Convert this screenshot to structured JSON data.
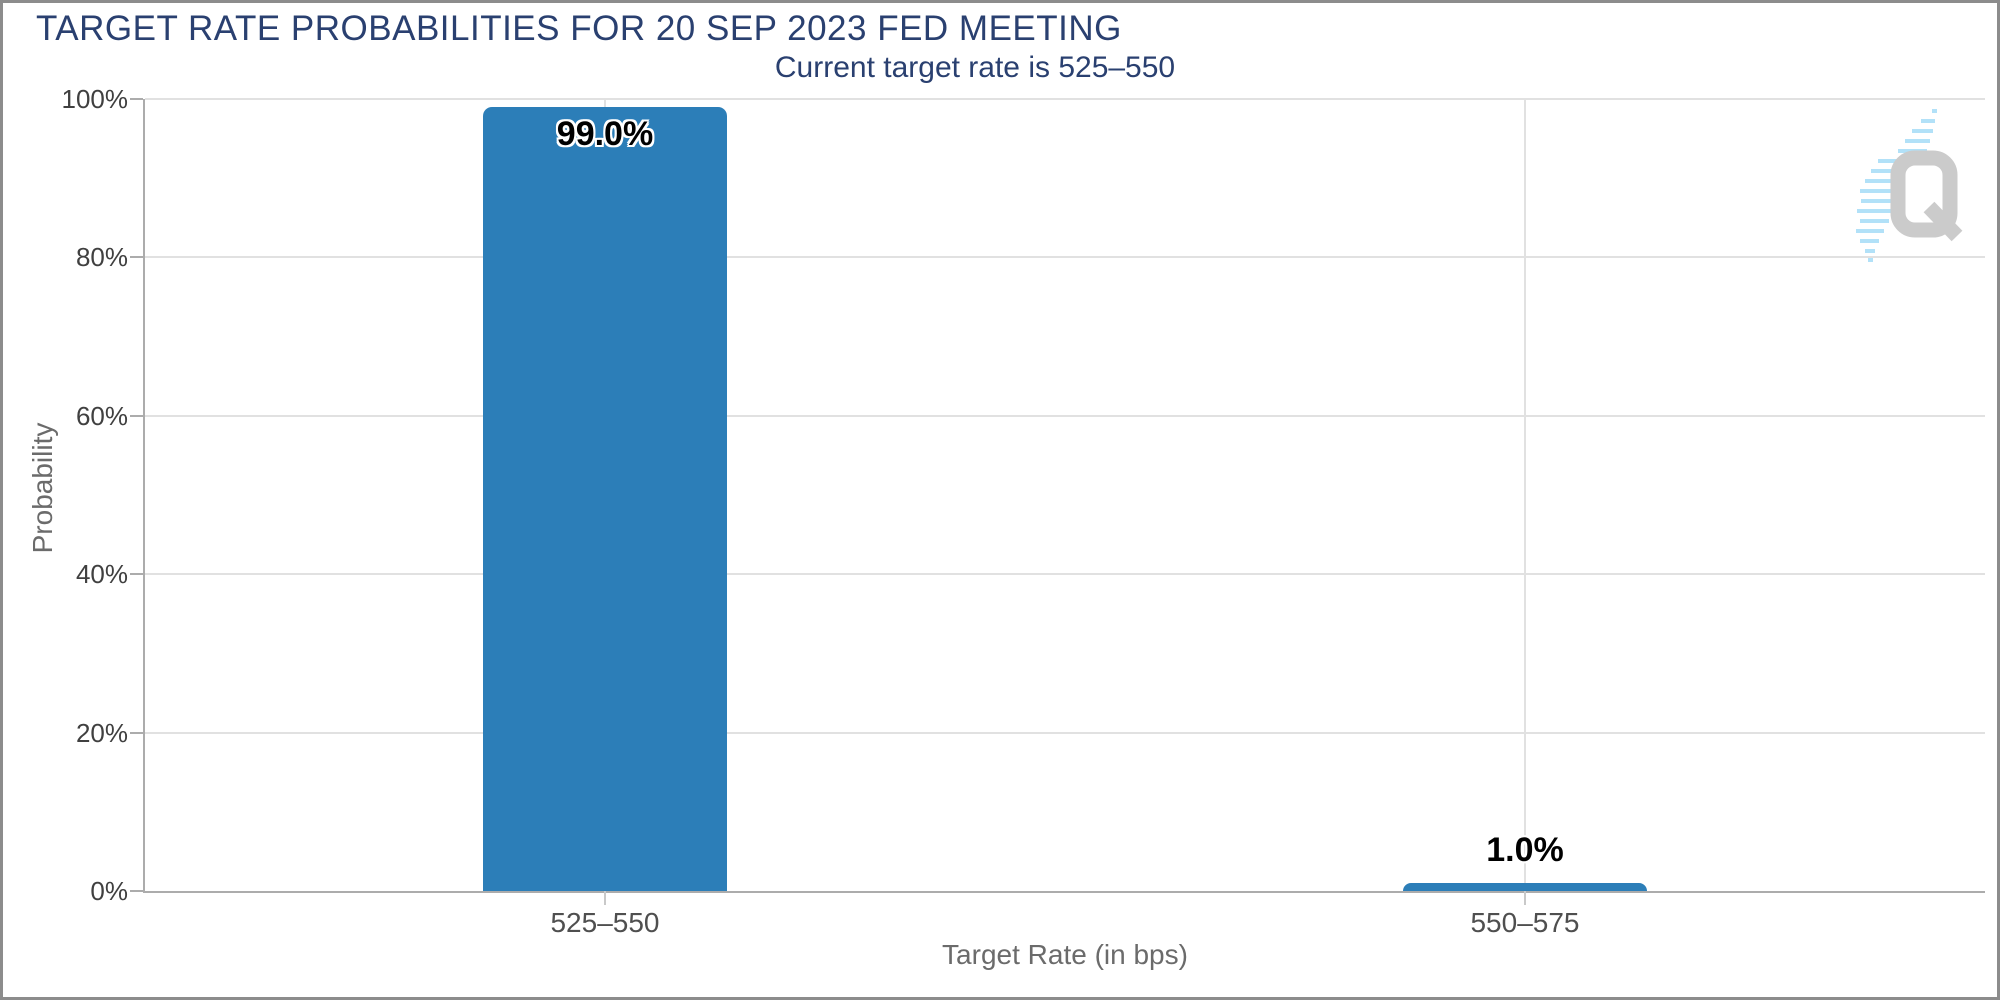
{
  "chart_data": {
    "type": "bar",
    "title": "TARGET RATE PROBABILITIES FOR 20 SEP 2023 FED MEETING",
    "subtitle": "Current target rate is 525–550",
    "xlabel": "Target Rate (in bps)",
    "ylabel": "Probability",
    "categories": [
      "525–550",
      "550–575"
    ],
    "values": [
      99.0,
      1.0
    ],
    "value_labels": [
      "99.0%",
      "1.0%"
    ],
    "ylim": [
      0,
      100
    ],
    "ytick_values": [
      0,
      20,
      40,
      60,
      80,
      100
    ],
    "ytick_labels": [
      "0%",
      "20%",
      "40%",
      "60%",
      "80%",
      "100%"
    ],
    "grid": true,
    "legend": "none",
    "bar_color": "#2C7EB8"
  },
  "watermark": {
    "letter": "Q",
    "letter_color": "#C9C9C9",
    "streak_color": "#AEE0F8"
  },
  "colors": {
    "title_text": "#2A4070",
    "axis_line": "#ACACAC",
    "gridline": "#E1E1E1",
    "tick_label": "#404040",
    "category_label": "#4F4F4F",
    "axis_title": "#6B6B6B",
    "frame_border": "#8C8C8C",
    "background": "#FFFFFF"
  }
}
